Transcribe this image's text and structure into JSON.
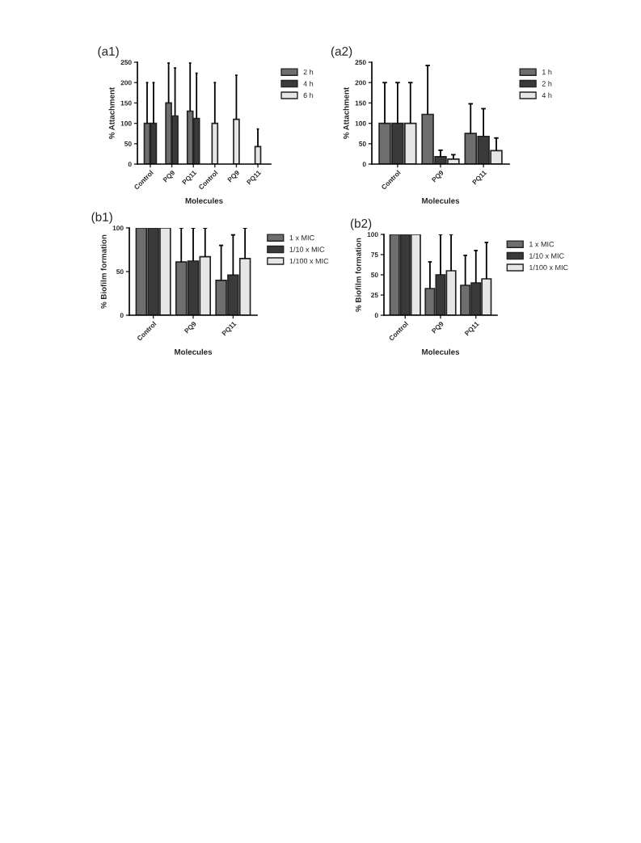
{
  "chart_data": [
    {
      "type": "bar",
      "title": "(a1)",
      "xlabel": "Molecules",
      "ylabel": "% Attachment",
      "categories": [
        "Control",
        "PQ9",
        "PQ11",
        "Control",
        "PQ9",
        "PQ11"
      ],
      "ylim": [
        0,
        250
      ],
      "yticks": [
        0,
        50,
        100,
        150,
        200,
        250
      ],
      "grid": false,
      "legend": "right",
      "series": [
        {
          "name": "2 h",
          "color": "#6e6e6e",
          "values": [
            100,
            150,
            130,
            null,
            null,
            null
          ],
          "errors": [
            [
              100,
              200
            ],
            [
              150,
              248
            ],
            [
              130,
              248
            ],
            null,
            null,
            null
          ]
        },
        {
          "name": "4 h",
          "color": "#3a3a3a",
          "values": [
            100,
            118,
            112,
            null,
            null,
            null
          ],
          "errors": [
            [
              100,
              200
            ],
            [
              118,
              236
            ],
            [
              112,
              223
            ],
            null,
            null,
            null
          ]
        },
        {
          "name": "6 h",
          "color": "#e6e6e6",
          "values": [
            null,
            null,
            null,
            100,
            110,
            43
          ],
          "errors": [
            null,
            null,
            null,
            [
              100,
              200
            ],
            [
              110,
              218
            ],
            [
              43,
              86
            ]
          ]
        }
      ]
    },
    {
      "type": "bar",
      "title": "(a2)",
      "xlabel": "Molecules",
      "ylabel": "% Attachment",
      "categories": [
        "Control",
        "PQ9",
        "PQ11"
      ],
      "ylim": [
        0,
        250
      ],
      "yticks": [
        0,
        50,
        100,
        150,
        200,
        250
      ],
      "grid": false,
      "legend": "right",
      "series": [
        {
          "name": "1 h",
          "color": "#6e6e6e",
          "values": [
            100,
            122,
            75
          ],
          "errors": [
            [
              100,
              200
            ],
            [
              122,
              242
            ],
            [
              75,
              148
            ]
          ]
        },
        {
          "name": "2 h",
          "color": "#3a3a3a",
          "values": [
            100,
            18,
            68
          ],
          "errors": [
            [
              100,
              200
            ],
            [
              18,
              34
            ],
            [
              68,
              136
            ]
          ]
        },
        {
          "name": "4 h",
          "color": "#e6e6e6",
          "values": [
            100,
            12,
            33
          ],
          "errors": [
            [
              100,
              200
            ],
            [
              12,
              23
            ],
            [
              33,
              64
            ]
          ]
        }
      ]
    },
    {
      "type": "bar",
      "title": "(b1)",
      "xlabel": "Molecules",
      "ylabel": "% Biofilm formation",
      "categories": [
        "Control",
        "PQ9",
        "PQ11"
      ],
      "ylim": [
        0,
        100
      ],
      "yticks": [
        0,
        50,
        100
      ],
      "grid": false,
      "legend": "right",
      "series": [
        {
          "name": "1 x MIC",
          "color": "#6e6e6e",
          "values": [
            100,
            61,
            40
          ],
          "errors": [
            null,
            [
              61,
              100
            ],
            [
              40,
              80
            ]
          ]
        },
        {
          "name": "1/10 x MIC",
          "color": "#3a3a3a",
          "values": [
            100,
            62,
            46
          ],
          "errors": [
            null,
            [
              62,
              100
            ],
            [
              46,
              92
            ]
          ]
        },
        {
          "name": "1/100 x MIC",
          "color": "#e6e6e6",
          "values": [
            100,
            67,
            65
          ],
          "errors": [
            null,
            [
              67,
              100
            ],
            [
              65,
              100
            ]
          ]
        }
      ]
    },
    {
      "type": "bar",
      "title": "(b2)",
      "xlabel": "Molecules",
      "ylabel": "% Biofilm formation",
      "categories": [
        "Control",
        "PQ9",
        "PQ11"
      ],
      "ylim": [
        0,
        100
      ],
      "yticks": [
        0,
        25,
        50,
        75,
        100
      ],
      "grid": false,
      "legend": "right",
      "series": [
        {
          "name": "1 x MIC",
          "color": "#6e6e6e",
          "values": [
            100,
            33,
            37
          ],
          "errors": [
            null,
            [
              33,
              66
            ],
            [
              37,
              74
            ]
          ]
        },
        {
          "name": "1/10 x MIC",
          "color": "#3a3a3a",
          "values": [
            100,
            50,
            40
          ],
          "errors": [
            null,
            [
              50,
              100
            ],
            [
              40,
              80
            ]
          ]
        },
        {
          "name": "1/100 x MIC",
          "color": "#e6e6e6",
          "values": [
            100,
            55,
            45
          ],
          "errors": [
            null,
            [
              55,
              100
            ],
            [
              45,
              90
            ]
          ]
        }
      ]
    }
  ]
}
